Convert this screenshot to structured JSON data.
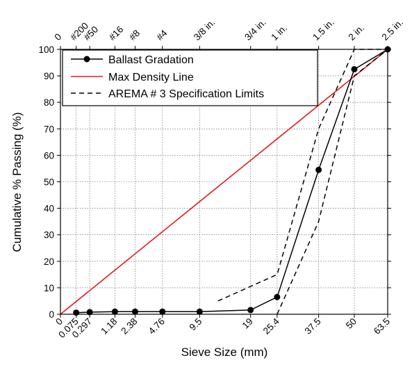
{
  "chart_data": {
    "type": "line",
    "title": "",
    "xlabel": "Sieve Size (mm)",
    "ylabel": "Cumulative % Passing (%)",
    "x_scale": "power 0.45",
    "ylim": [
      0,
      100
    ],
    "yticks": [
      0,
      10,
      20,
      30,
      40,
      50,
      60,
      70,
      80,
      90,
      100
    ],
    "bottom_ticks": [
      {
        "value": 0,
        "label": "0"
      },
      {
        "value": 0.075,
        "label": "0.075"
      },
      {
        "value": 0.297,
        "label": "0.297"
      },
      {
        "value": 1.18,
        "label": "1.18"
      },
      {
        "value": 2.38,
        "label": "2.38"
      },
      {
        "value": 4.76,
        "label": "4.76"
      },
      {
        "value": 9.5,
        "label": "9.5"
      },
      {
        "value": 19,
        "label": "19"
      },
      {
        "value": 25.4,
        "label": "25.4"
      },
      {
        "value": 37.5,
        "label": "37.5"
      },
      {
        "value": 50,
        "label": "50"
      },
      {
        "value": 63.5,
        "label": "63.5"
      }
    ],
    "top_ticks": [
      {
        "value": 0,
        "label": "0"
      },
      {
        "value": 0.075,
        "label": "#200"
      },
      {
        "value": 0.297,
        "label": "#50"
      },
      {
        "value": 1.18,
        "label": "#16"
      },
      {
        "value": 2.38,
        "label": "#8"
      },
      {
        "value": 4.76,
        "label": "#4"
      },
      {
        "value": 9.5,
        "label": "3/8 in."
      },
      {
        "value": 19,
        "label": "3/4 in."
      },
      {
        "value": 25.4,
        "label": "1 in."
      },
      {
        "value": 37.5,
        "label": "1.5 in."
      },
      {
        "value": 50,
        "label": "2 in."
      },
      {
        "value": 63.5,
        "label": "2.5 in."
      }
    ],
    "grid": true,
    "legend_position": "top-left",
    "series": [
      {
        "name": "Ballast Gradation",
        "color": "#000000",
        "style": "solid-markers",
        "x": [
          0.075,
          0.297,
          1.18,
          2.38,
          4.76,
          9.5,
          19,
          25.4,
          37.5,
          50,
          63.5
        ],
        "y": [
          0.6,
          0.8,
          1.0,
          1.0,
          1.0,
          1.0,
          1.6,
          6.5,
          54.5,
          92.5,
          100
        ]
      },
      {
        "name": "Max Density Line",
        "color": "#e31a1c",
        "style": "solid",
        "x": [
          0,
          63.5
        ],
        "y": [
          0,
          100
        ]
      },
      {
        "name": "AREMA # 3 Specification Limits",
        "color": "#000000",
        "style": "dashed",
        "segments": [
          {
            "x": [
              12.5,
              25.4,
              37.5,
              50,
              63.5
            ],
            "y": [
              5,
              15,
              70,
              100,
              100
            ]
          },
          {
            "x": [
              25.4,
              37.5,
              50,
              63.5
            ],
            "y": [
              0,
              35,
              90,
              100
            ]
          }
        ]
      }
    ]
  }
}
